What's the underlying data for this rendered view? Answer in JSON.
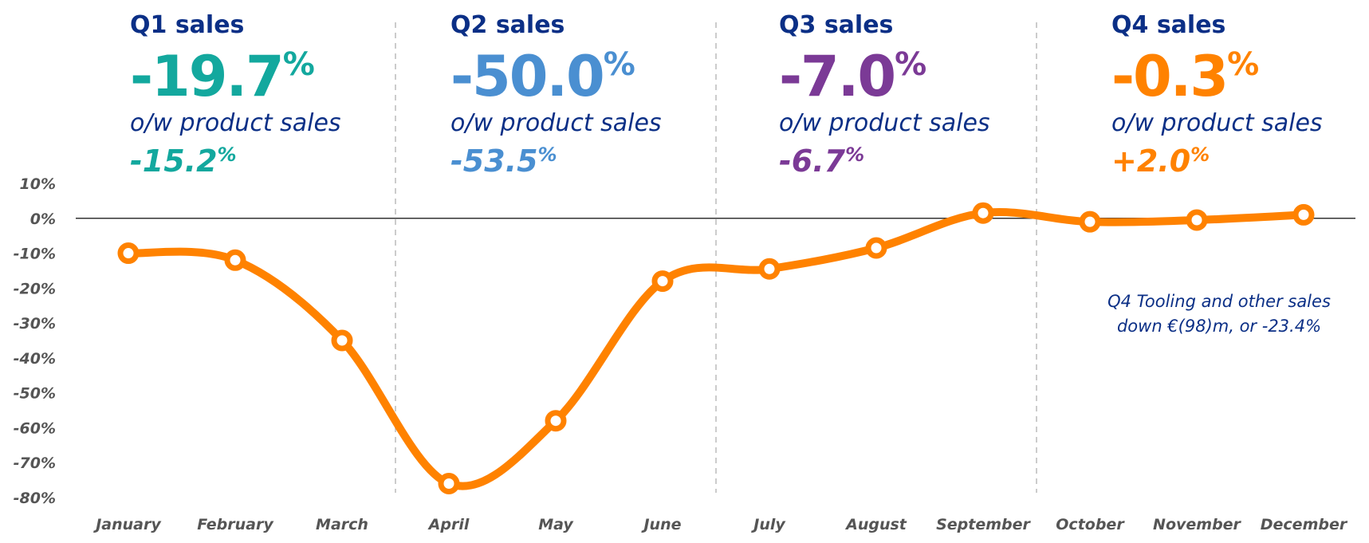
{
  "chart_data": {
    "type": "line",
    "categories": [
      "January",
      "February",
      "March",
      "April",
      "May",
      "June",
      "July",
      "August",
      "September",
      "October",
      "November",
      "December"
    ],
    "series": [
      {
        "color": "#ff8200",
        "values": [
          -10,
          -12,
          -35,
          -76,
          -58,
          -18,
          -14.5,
          -8.5,
          1.5,
          -1,
          -0.5,
          1
        ]
      }
    ],
    "ylim": [
      -80,
      10
    ],
    "yticks": [
      {
        "value": 10,
        "label": "10%"
      },
      {
        "value": 0,
        "label": "0%"
      },
      {
        "value": -10,
        "label": "-10%"
      },
      {
        "value": -20,
        "label": "-20%"
      },
      {
        "value": -30,
        "label": "-30%"
      },
      {
        "value": -40,
        "label": "-40%"
      },
      {
        "value": -50,
        "label": "-50%"
      },
      {
        "value": -60,
        "label": "-60%"
      },
      {
        "value": -70,
        "label": "-70%"
      },
      {
        "value": -80,
        "label": "-80%"
      }
    ],
    "annotation": [
      "Q4 Tooling and other sales",
      "down €(98)m, or -23.4%"
    ]
  },
  "quarters": [
    {
      "title": "Q1 sales",
      "total": "-19.7",
      "unit": "%",
      "subtitle": "o/w product sales",
      "product": "-15.2",
      "color": "#13a89e"
    },
    {
      "title": "Q2 sales",
      "total": "-50.0",
      "unit": "%",
      "subtitle": "o/w product sales",
      "product": "-53.5",
      "color": "#4a8fd1"
    },
    {
      "title": "Q3 sales",
      "total": "-7.0",
      "unit": "%",
      "subtitle": "o/w product sales",
      "product": "-6.7",
      "color": "#7b3a96"
    },
    {
      "title": "Q4 sales",
      "total": "-0.3",
      "unit": "%",
      "subtitle": "o/w product sales",
      "product": "+2.0",
      "color": "#ff8200"
    }
  ]
}
